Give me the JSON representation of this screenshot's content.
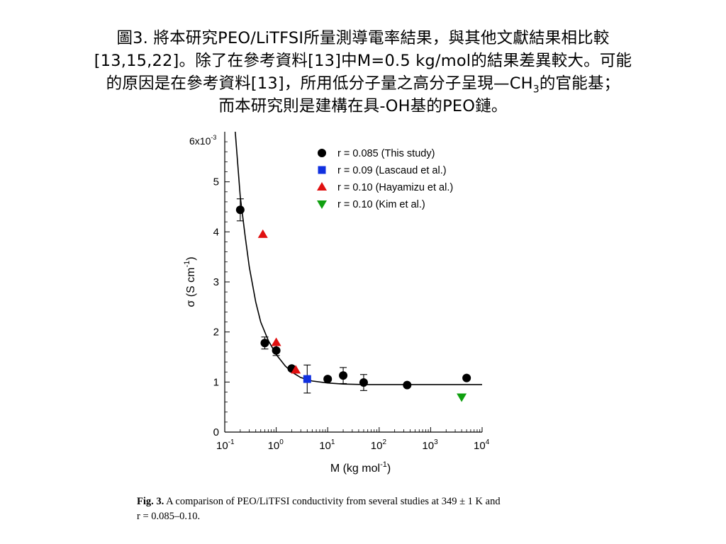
{
  "heading": {
    "line1": "圖3. 將本研究PEO/LiTFSI所量測導電率結果，與其他文獻結果相比較",
    "line2": "[13,15,22]。除了在參考資料[13]中M=0.5 kg/mol的結果差異較大。可能",
    "line3_a": "的原因是在參考資料[13]，所用低分子量之高分子呈現—CH",
    "line3_sub": "3",
    "line3_b": "的官能基；",
    "line4": "而本研究則是建構在具-OH基的PEO鏈。"
  },
  "caption": {
    "label": "Fig. 3.",
    "text": "A comparison of PEO/LiTFSI conductivity from several studies at 349 ± 1 K and",
    "line2": "r = 0.085–0.10."
  },
  "chart_data": {
    "type": "scatter",
    "xlabel": "M (kg mol",
    "xlabel_sup": "-1",
    "xlabel_end": ")",
    "ylabel": "σ (S cm",
    "ylabel_sup": "-1",
    "ylabel_end": ")",
    "x_scale": "log",
    "xlim": [
      0.1,
      10000
    ],
    "ylim": [
      0,
      0.006
    ],
    "y_multiplier_label": "6x10",
    "y_multiplier_sup": "-3",
    "xticks": [
      {
        "value": 0.1,
        "base": "10",
        "exp": "-1"
      },
      {
        "value": 1,
        "base": "10",
        "exp": "0"
      },
      {
        "value": 10,
        "base": "10",
        "exp": "1"
      },
      {
        "value": 100,
        "base": "10",
        "exp": "2"
      },
      {
        "value": 1000,
        "base": "10",
        "exp": "3"
      },
      {
        "value": 10000,
        "base": "10",
        "exp": "4"
      }
    ],
    "yticks": [
      {
        "value": 0,
        "label": "0"
      },
      {
        "value": 0.001,
        "label": "1"
      },
      {
        "value": 0.002,
        "label": "2"
      },
      {
        "value": 0.003,
        "label": "3"
      },
      {
        "value": 0.004,
        "label": "4"
      },
      {
        "value": 0.005,
        "label": "5"
      }
    ],
    "legend_position": "top-right",
    "series": [
      {
        "name": "r = 0.085 (This study)",
        "marker": "circle",
        "color": "#000000",
        "points": [
          {
            "x": 0.2,
            "y": 0.00444,
            "err": 0.00022
          },
          {
            "x": 0.6,
            "y": 0.00178,
            "err": 0.00012
          },
          {
            "x": 1.0,
            "y": 0.00163,
            "err": 0.0001
          },
          {
            "x": 2.0,
            "y": 0.00127,
            "err": 4e-05
          },
          {
            "x": 10,
            "y": 0.00106,
            "err": 4e-05
          },
          {
            "x": 20,
            "y": 0.00113,
            "err": 0.00016
          },
          {
            "x": 50,
            "y": 0.00099,
            "err": 0.00016
          },
          {
            "x": 350,
            "y": 0.00094,
            "err": 3e-05
          },
          {
            "x": 5000,
            "y": 0.00108,
            "err": 2e-05
          }
        ]
      },
      {
        "name": "r = 0.09 (Lascaud et al.)",
        "marker": "square",
        "color": "#1030e0",
        "points": [
          {
            "x": 4,
            "y": 0.00106,
            "err": 0.00028
          }
        ]
      },
      {
        "name": "r = 0.10 (Hayamizu et al.)",
        "marker": "triangle-up",
        "color": "#e01010",
        "points": [
          {
            "x": 0.55,
            "y": 0.00395
          },
          {
            "x": 1.0,
            "y": 0.00179
          },
          {
            "x": 2.4,
            "y": 0.00124
          }
        ]
      },
      {
        "name": "r = 0.10 (Kim et al.)",
        "marker": "triangle-down",
        "color": "#10a010",
        "points": [
          {
            "x": 4000,
            "y": 0.0007
          }
        ]
      }
    ],
    "fit_curve": {
      "color": "#000000",
      "points": [
        [
          0.16,
          0.0062
        ],
        [
          0.2,
          0.0047
        ],
        [
          0.25,
          0.0039
        ],
        [
          0.3,
          0.0033
        ],
        [
          0.4,
          0.0026
        ],
        [
          0.5,
          0.0022
        ],
        [
          0.7,
          0.00183
        ],
        [
          1.0,
          0.00155
        ],
        [
          1.5,
          0.00132
        ],
        [
          2,
          0.0012
        ],
        [
          3,
          0.00109
        ],
        [
          5,
          0.00102
        ],
        [
          10,
          0.00098
        ],
        [
          20,
          0.00096
        ],
        [
          50,
          0.00095
        ],
        [
          100,
          0.00095
        ],
        [
          1000,
          0.00095
        ],
        [
          10000,
          0.00095
        ]
      ]
    }
  }
}
